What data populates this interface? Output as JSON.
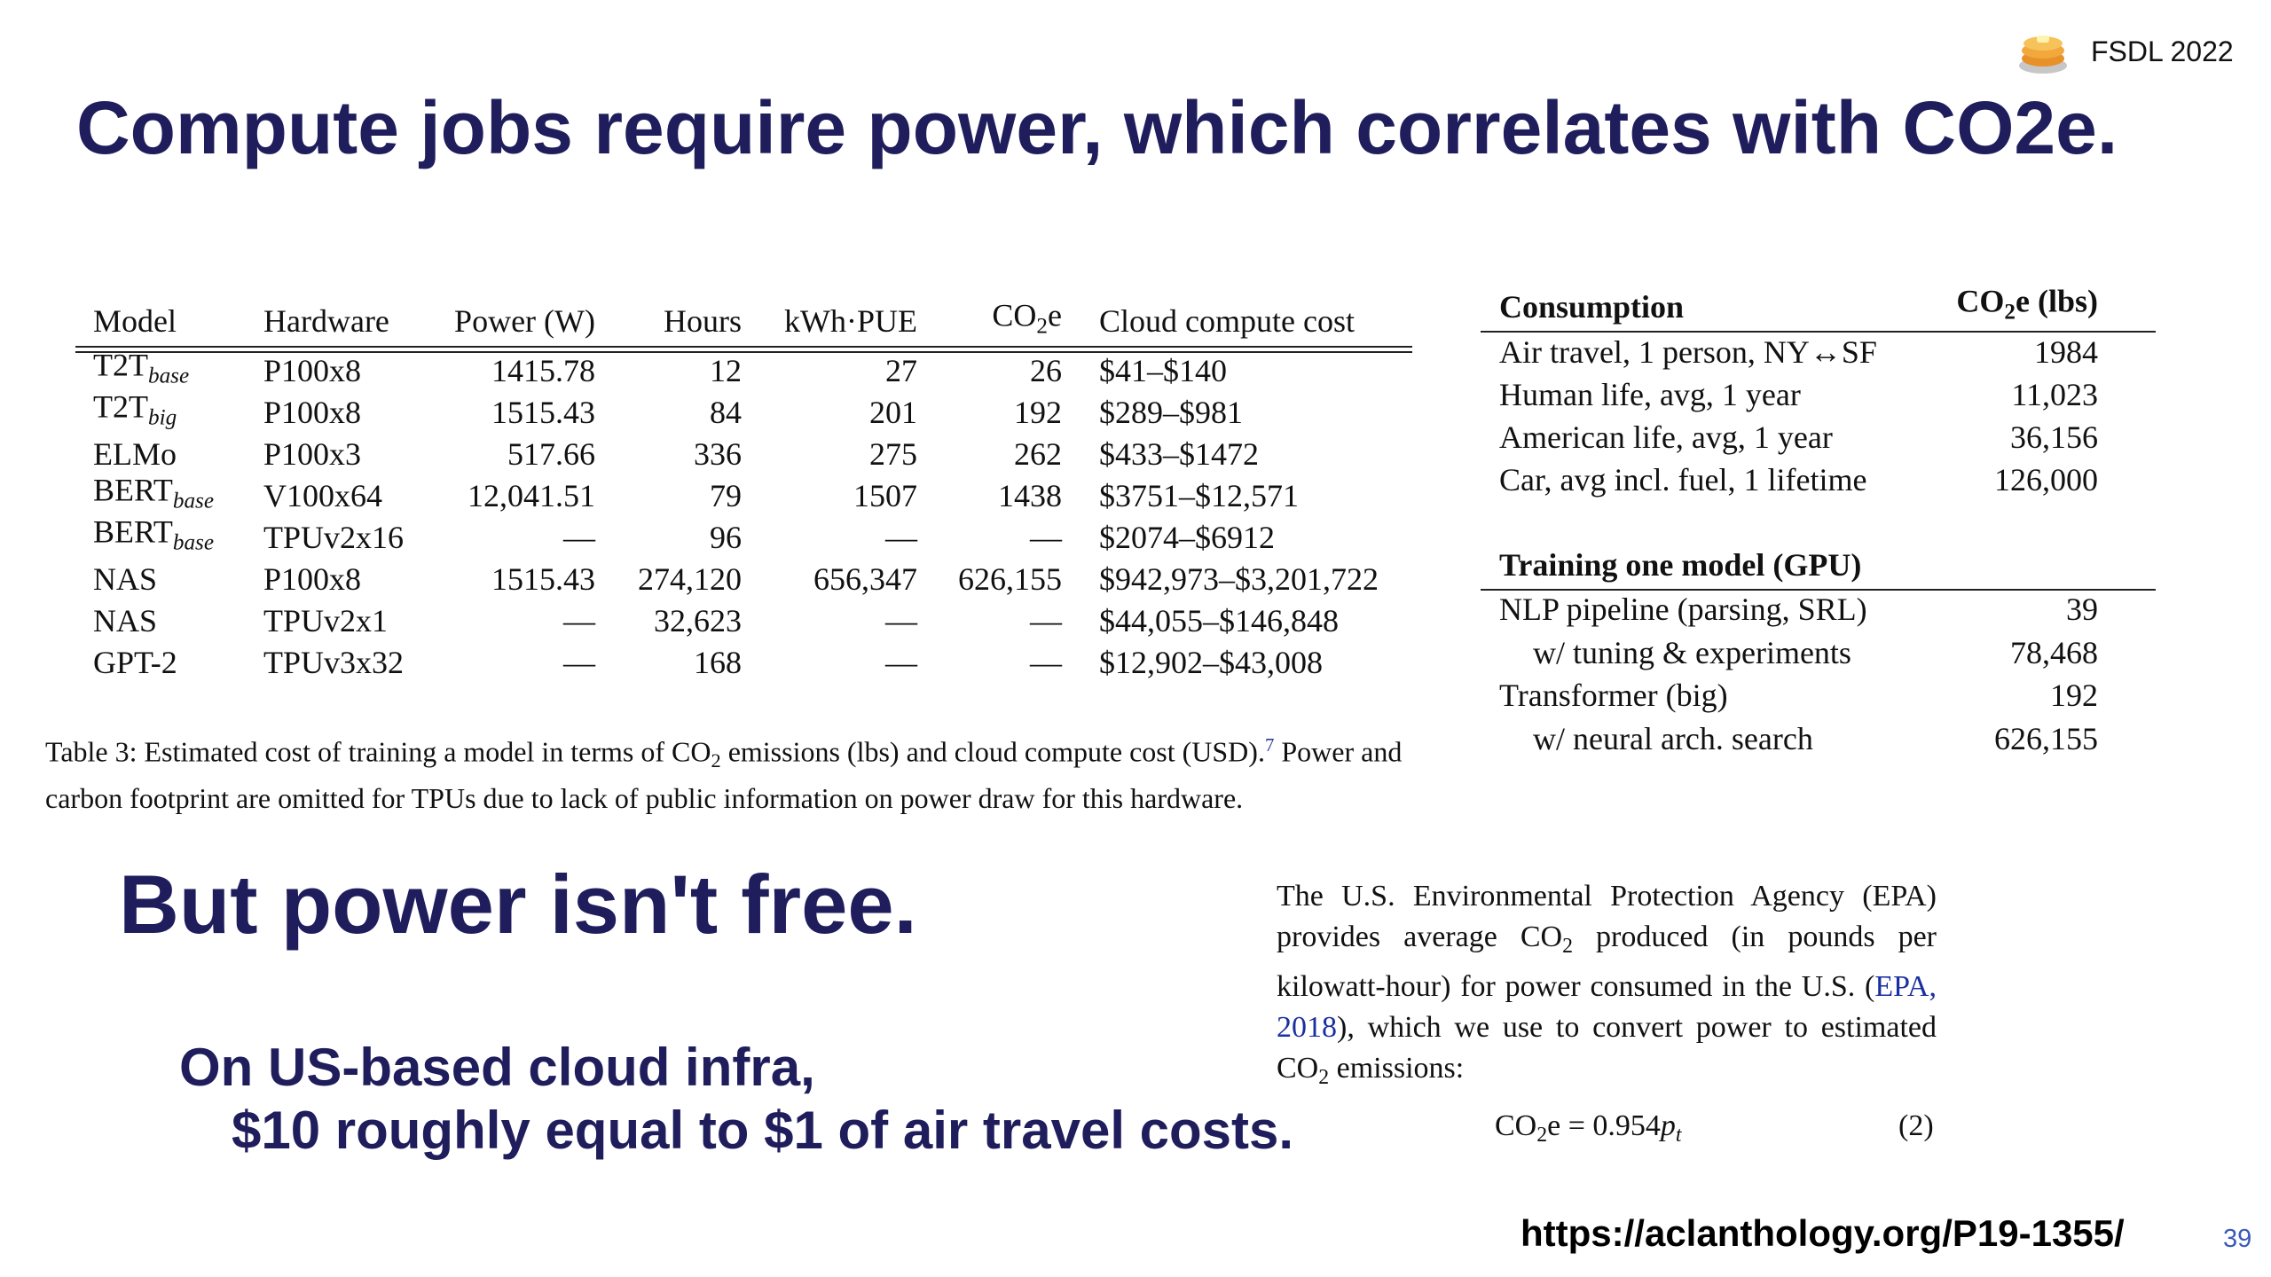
{
  "badge": "FSDL 2022",
  "title": "Compute jobs require power, which correlates with CO2e.",
  "table3": {
    "header": [
      "Model",
      "Hardware",
      "Power (W)",
      "Hours",
      "kWh·PUE",
      [
        "CO",
        "2",
        "e"
      ],
      "Cloud compute cost"
    ],
    "rows": [
      [
        [
          "T2T",
          "base"
        ],
        "P100x8",
        "1415.78",
        "12",
        "27",
        "26",
        "$41–$140"
      ],
      [
        [
          "T2T",
          "big"
        ],
        "P100x8",
        "1515.43",
        "84",
        "201",
        "192",
        "$289–$981"
      ],
      [
        "ELMo",
        "P100x3",
        "517.66",
        "336",
        "275",
        "262",
        "$433–$1472"
      ],
      [
        [
          "BERT",
          "base"
        ],
        "V100x64",
        "12,041.51",
        "79",
        "1507",
        "1438",
        "$3751–$12,571"
      ],
      [
        [
          "BERT",
          "base"
        ],
        "TPUv2x16",
        "—",
        "96",
        "—",
        "—",
        "$2074–$6912"
      ],
      [
        "NAS",
        "P100x8",
        "1515.43",
        "274,120",
        "656,347",
        "626,155",
        "$942,973–$3,201,722"
      ],
      [
        "NAS",
        "TPUv2x1",
        "—",
        "32,623",
        "—",
        "—",
        "$44,055–$146,848"
      ],
      [
        "GPT-2",
        "TPUv3x32",
        "—",
        "168",
        "—",
        "—",
        "$12,902–$43,008"
      ]
    ],
    "caption": [
      "Table 3: Estimated cost of training a model in terms of CO",
      "2",
      " emissions (lbs) and cloud compute cost (USD).",
      "7",
      " Power and carbon footprint are omitted for TPUs due to lack of public information on power draw for this hardware."
    ]
  },
  "consumption": {
    "header": [
      "Consumption",
      [
        "CO",
        "2",
        "e (lbs)"
      ]
    ],
    "rows": [
      [
        "Air travel, 1 person, NY↔SF",
        "1984"
      ],
      [
        "Human life, avg, 1 year",
        "11,023"
      ],
      [
        "American life, avg, 1 year",
        "36,156"
      ],
      [
        "Car, avg incl. fuel, 1 lifetime",
        "126,000"
      ]
    ],
    "training_header": "Training one model (GPU)",
    "training_rows": [
      [
        "NLP pipeline (parsing, SRL)",
        "39"
      ],
      [
        "w/ tuning & experiments",
        "78,468"
      ],
      [
        "Transformer (big)",
        "192"
      ],
      [
        "w/ neural arch. search",
        "626,155"
      ]
    ]
  },
  "subtitle": "But power isn't free.",
  "note": [
    "On US-based cloud infra,",
    "$10 roughly equal to $1 of air travel costs."
  ],
  "epa": [
    "The U.S. Environmental Protection Agency (EPA) provides average CO",
    "2",
    " produced (in pounds per kilowatt-hour) for power consumed in the U.S. (",
    "EPA, 2018",
    "), which we use to convert power to estimated CO",
    "2",
    " emissions:"
  ],
  "equation": [
    "CO",
    "2",
    "e = 0.954",
    "p",
    "t"
  ],
  "equation_number": "(2)",
  "url": "https://aclanthology.org/P19-1355/",
  "page_number": "39"
}
